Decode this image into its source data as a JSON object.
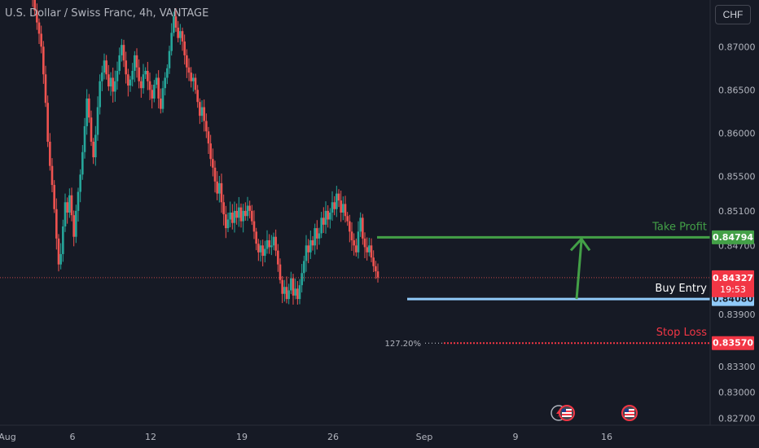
{
  "header": {
    "title": "U.S. Dollar / Swiss Franc, 4h, VANTAGE",
    "currency_button": "CHF"
  },
  "colors": {
    "background": "#161a25",
    "up": "#26a69a",
    "down": "#ef5350",
    "take_profit": "#43a047",
    "buy_entry": "#90caf9",
    "stop_loss": "#f23645",
    "text": "#b2b5be"
  },
  "chart_data": {
    "type": "candlestick",
    "symbol": "USDCHF",
    "timeframe": "4h",
    "ylim": [
      0.8262,
      0.8754
    ],
    "y_ticks": [
      "0.87000",
      "0.86500",
      "0.86000",
      "0.85500",
      "0.85100",
      "0.84700",
      "0.83900",
      "0.83300",
      "0.83000",
      "0.82700"
    ],
    "x_ticks": [
      "Aug",
      "6",
      "12",
      "19",
      "26",
      "Sep",
      "9",
      "16"
    ],
    "x_tick_dates": [
      "2024-08-01",
      "2024-08-06",
      "2024-08-12",
      "2024-08-19",
      "2024-08-26",
      "2024-09-02",
      "2024-09-09",
      "2024-09-16"
    ],
    "price_labels": {
      "take_profit": "0.84794",
      "current": "0.84327",
      "countdown": "19:53",
      "buy_entry": "0.84080",
      "stop_loss": "0.83570"
    },
    "levels": [
      {
        "name": "Take Profit",
        "value": 0.84794
      },
      {
        "name": "Buy Entry",
        "value": 0.8408
      },
      {
        "name": "Stop Loss",
        "value": 0.8357
      }
    ],
    "fib_label": "127.20%",
    "current_price": 0.84327,
    "path_close": [
      0.8755,
      0.8742,
      0.8728,
      0.8715,
      0.87,
      0.8668,
      0.8635,
      0.859,
      0.8562,
      0.854,
      0.8512,
      0.8478,
      0.8448,
      0.846,
      0.8492,
      0.852,
      0.8508,
      0.8528,
      0.8505,
      0.848,
      0.851,
      0.8532,
      0.8552,
      0.8578,
      0.8608,
      0.864,
      0.8618,
      0.859,
      0.8572,
      0.8598,
      0.863,
      0.866,
      0.867,
      0.8684,
      0.8668,
      0.8654,
      0.8664,
      0.8648,
      0.866,
      0.8672,
      0.869,
      0.8702,
      0.8684,
      0.8668,
      0.8655,
      0.8662,
      0.8672,
      0.869,
      0.8676,
      0.866,
      0.8652,
      0.8668,
      0.8672,
      0.866,
      0.865,
      0.864,
      0.8656,
      0.8664,
      0.864,
      0.8628,
      0.8652,
      0.8664,
      0.8675,
      0.8695,
      0.8716,
      0.8735,
      0.8722,
      0.871,
      0.8718,
      0.8706,
      0.869,
      0.8676,
      0.867,
      0.866,
      0.8664,
      0.865,
      0.8636,
      0.862,
      0.863,
      0.8614,
      0.8602,
      0.8588,
      0.857,
      0.856,
      0.8544,
      0.853,
      0.8542,
      0.852,
      0.8506,
      0.849,
      0.85,
      0.8508,
      0.8496,
      0.851,
      0.8502,
      0.8514,
      0.8498,
      0.851,
      0.8504,
      0.8516,
      0.851,
      0.8498,
      0.8486,
      0.8472,
      0.8462,
      0.847,
      0.8458,
      0.8466,
      0.8476,
      0.8468,
      0.847,
      0.848,
      0.8464,
      0.8448,
      0.843,
      0.8414,
      0.8422,
      0.8408,
      0.8418,
      0.8432,
      0.8412,
      0.842,
      0.8408,
      0.8424,
      0.8438,
      0.8452,
      0.847,
      0.8462,
      0.8476,
      0.847,
      0.849,
      0.8478,
      0.8484,
      0.8502,
      0.8494,
      0.851,
      0.85,
      0.8508,
      0.852,
      0.8512,
      0.853,
      0.8522,
      0.8508,
      0.8518,
      0.8504,
      0.8498,
      0.8486,
      0.8476,
      0.847,
      0.8462,
      0.8486,
      0.8502,
      0.8478,
      0.8468,
      0.8462,
      0.847,
      0.8456,
      0.8446,
      0.844,
      0.8433
    ],
    "indicator_icons": [
      "flag-us-icon",
      "bolt-icon",
      "flag-us-icon"
    ]
  }
}
